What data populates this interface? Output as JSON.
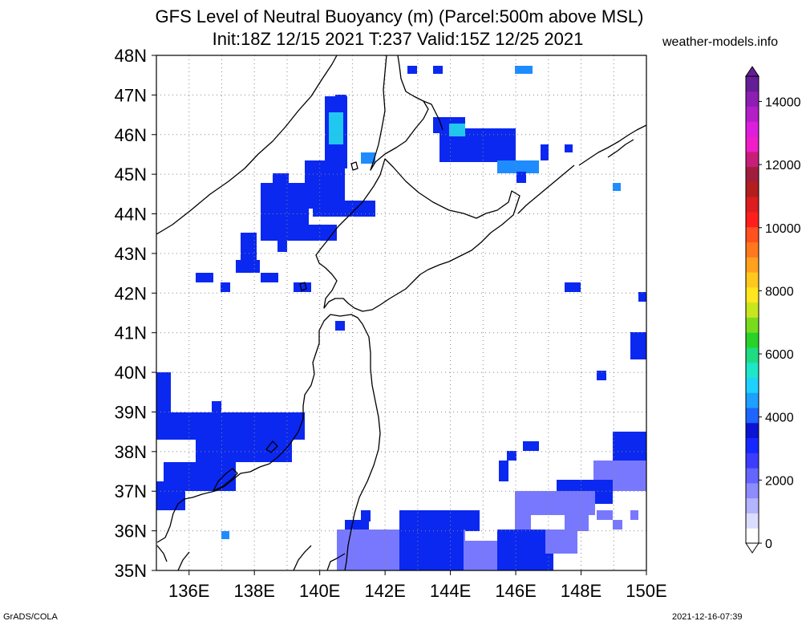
{
  "header": {
    "title_line1": "GFS Level of Neutral Buoyancy (m) (Parcel:500m above MSL)",
    "title_line2": "Init:18Z 12/15 2021 T:237 Valid:15Z 12/25 2021",
    "site": "weather-models.info"
  },
  "map": {
    "lon_range": [
      135,
      150
    ],
    "lat_range": [
      35,
      48
    ],
    "lon_labels": [
      "136E",
      "138E",
      "140E",
      "142E",
      "144E",
      "146E",
      "148E",
      "150E"
    ],
    "lat_labels": [
      "35N",
      "36N",
      "37N",
      "38N",
      "39N",
      "40N",
      "41N",
      "42N",
      "43N",
      "44N",
      "45N",
      "46N",
      "47N",
      "48N"
    ],
    "colors": {
      "deep_blue": "#1e3cff",
      "mid_blue": "#2850ff",
      "blue": "#0a28f0",
      "sky": "#1e8cff",
      "cyan": "#20c8f0",
      "lavender": "#7878ff"
    }
  },
  "colorbar": {
    "labels": [
      "0",
      "2000",
      "4000",
      "6000",
      "8000",
      "10000",
      "12000",
      "14000"
    ],
    "colors": [
      "#ffffff",
      "#dcdcff",
      "#b4b4ff",
      "#8c8cff",
      "#6464ff",
      "#3c3cff",
      "#1428ff",
      "#0a14d2",
      "#1e64ff",
      "#1ea0ff",
      "#1ed2ff",
      "#1ee6c8",
      "#1edc82",
      "#28d228",
      "#78dc1e",
      "#c8e61e",
      "#ffe61e",
      "#ffc81e",
      "#ffa01e",
      "#ff781e",
      "#ff501e",
      "#ff1e1e",
      "#dc1e1e",
      "#b41e1e",
      "#a01e3c",
      "#c81e78",
      "#f01ec8",
      "#dc1edc",
      "#b41ec8",
      "#8c1eb4",
      "#641e96"
    ]
  },
  "footer": {
    "left": "GrADS/COLA",
    "right": "2021-12-16-07:39"
  }
}
